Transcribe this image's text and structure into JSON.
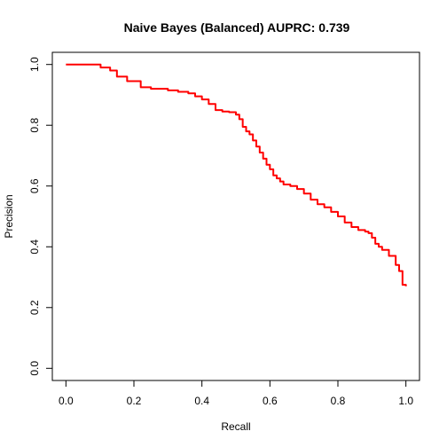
{
  "chart_data": {
    "type": "line",
    "title": "Naive Bayes (Balanced) AUPRC: 0.739",
    "xlabel": "Recall",
    "ylabel": "Precision",
    "xlim": [
      -0.04,
      1.04
    ],
    "ylim": [
      -0.04,
      1.04
    ],
    "x_ticks": [
      0.0,
      0.2,
      0.4,
      0.6,
      0.8,
      1.0
    ],
    "x_tick_labels": [
      "0.0",
      "0.2",
      "0.4",
      "0.6",
      "0.8",
      "1.0"
    ],
    "y_ticks": [
      0.0,
      0.2,
      0.4,
      0.6,
      0.8,
      1.0
    ],
    "y_tick_labels": [
      "0.0",
      "0.2",
      "0.4",
      "0.6",
      "0.8",
      "1.0"
    ],
    "grid": false,
    "legend": "none",
    "series": [
      {
        "color": "#ff0000",
        "x": [
          0.0,
          0.05,
          0.1,
          0.102,
          0.12,
          0.13,
          0.15,
          0.18,
          0.22,
          0.25,
          0.3,
          0.33,
          0.36,
          0.38,
          0.4,
          0.42,
          0.44,
          0.46,
          0.48,
          0.5,
          0.51,
          0.52,
          0.53,
          0.54,
          0.55,
          0.56,
          0.57,
          0.58,
          0.59,
          0.6,
          0.61,
          0.62,
          0.63,
          0.64,
          0.66,
          0.68,
          0.7,
          0.72,
          0.74,
          0.76,
          0.78,
          0.8,
          0.82,
          0.84,
          0.86,
          0.88,
          0.89,
          0.9,
          0.91,
          0.92,
          0.93,
          0.95,
          0.97,
          0.98,
          0.99,
          1.0
        ],
        "y": [
          1.0,
          1.0,
          1.0,
          0.99,
          0.99,
          0.98,
          0.96,
          0.945,
          0.925,
          0.92,
          0.915,
          0.91,
          0.905,
          0.895,
          0.885,
          0.87,
          0.85,
          0.845,
          0.843,
          0.835,
          0.82,
          0.795,
          0.78,
          0.77,
          0.75,
          0.73,
          0.71,
          0.69,
          0.67,
          0.655,
          0.635,
          0.625,
          0.615,
          0.605,
          0.6,
          0.59,
          0.575,
          0.555,
          0.54,
          0.53,
          0.515,
          0.5,
          0.48,
          0.465,
          0.455,
          0.45,
          0.445,
          0.43,
          0.41,
          0.4,
          0.39,
          0.37,
          0.34,
          0.32,
          0.275,
          0.27
        ]
      }
    ]
  }
}
